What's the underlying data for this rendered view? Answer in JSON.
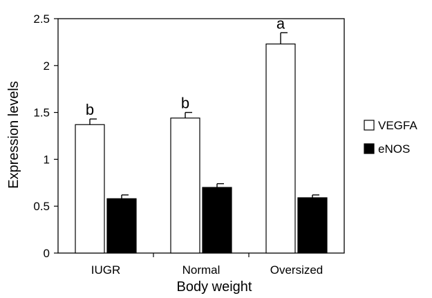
{
  "chart_data": {
    "type": "bar",
    "title": "",
    "xlabel": "Body weight",
    "ylabel": "Expression levels",
    "categories": [
      "IUGR",
      "Normal",
      "Oversized"
    ],
    "series": [
      {
        "name": "VEGFA",
        "values": [
          1.37,
          1.44,
          2.23
        ],
        "errors": [
          0.06,
          0.06,
          0.12
        ],
        "fill": "#ffffff"
      },
      {
        "name": "eNOS",
        "values": [
          0.58,
          0.7,
          0.59
        ],
        "errors": [
          0.04,
          0.04,
          0.03
        ],
        "fill": "#000000"
      }
    ],
    "significance_labels": [
      "b",
      "b",
      "a"
    ],
    "ylim": [
      0,
      2.5
    ],
    "yticks": [
      "0",
      "0.5",
      "1",
      "1.5",
      "2",
      "2.5"
    ],
    "grid": false,
    "legend_position": "right"
  }
}
